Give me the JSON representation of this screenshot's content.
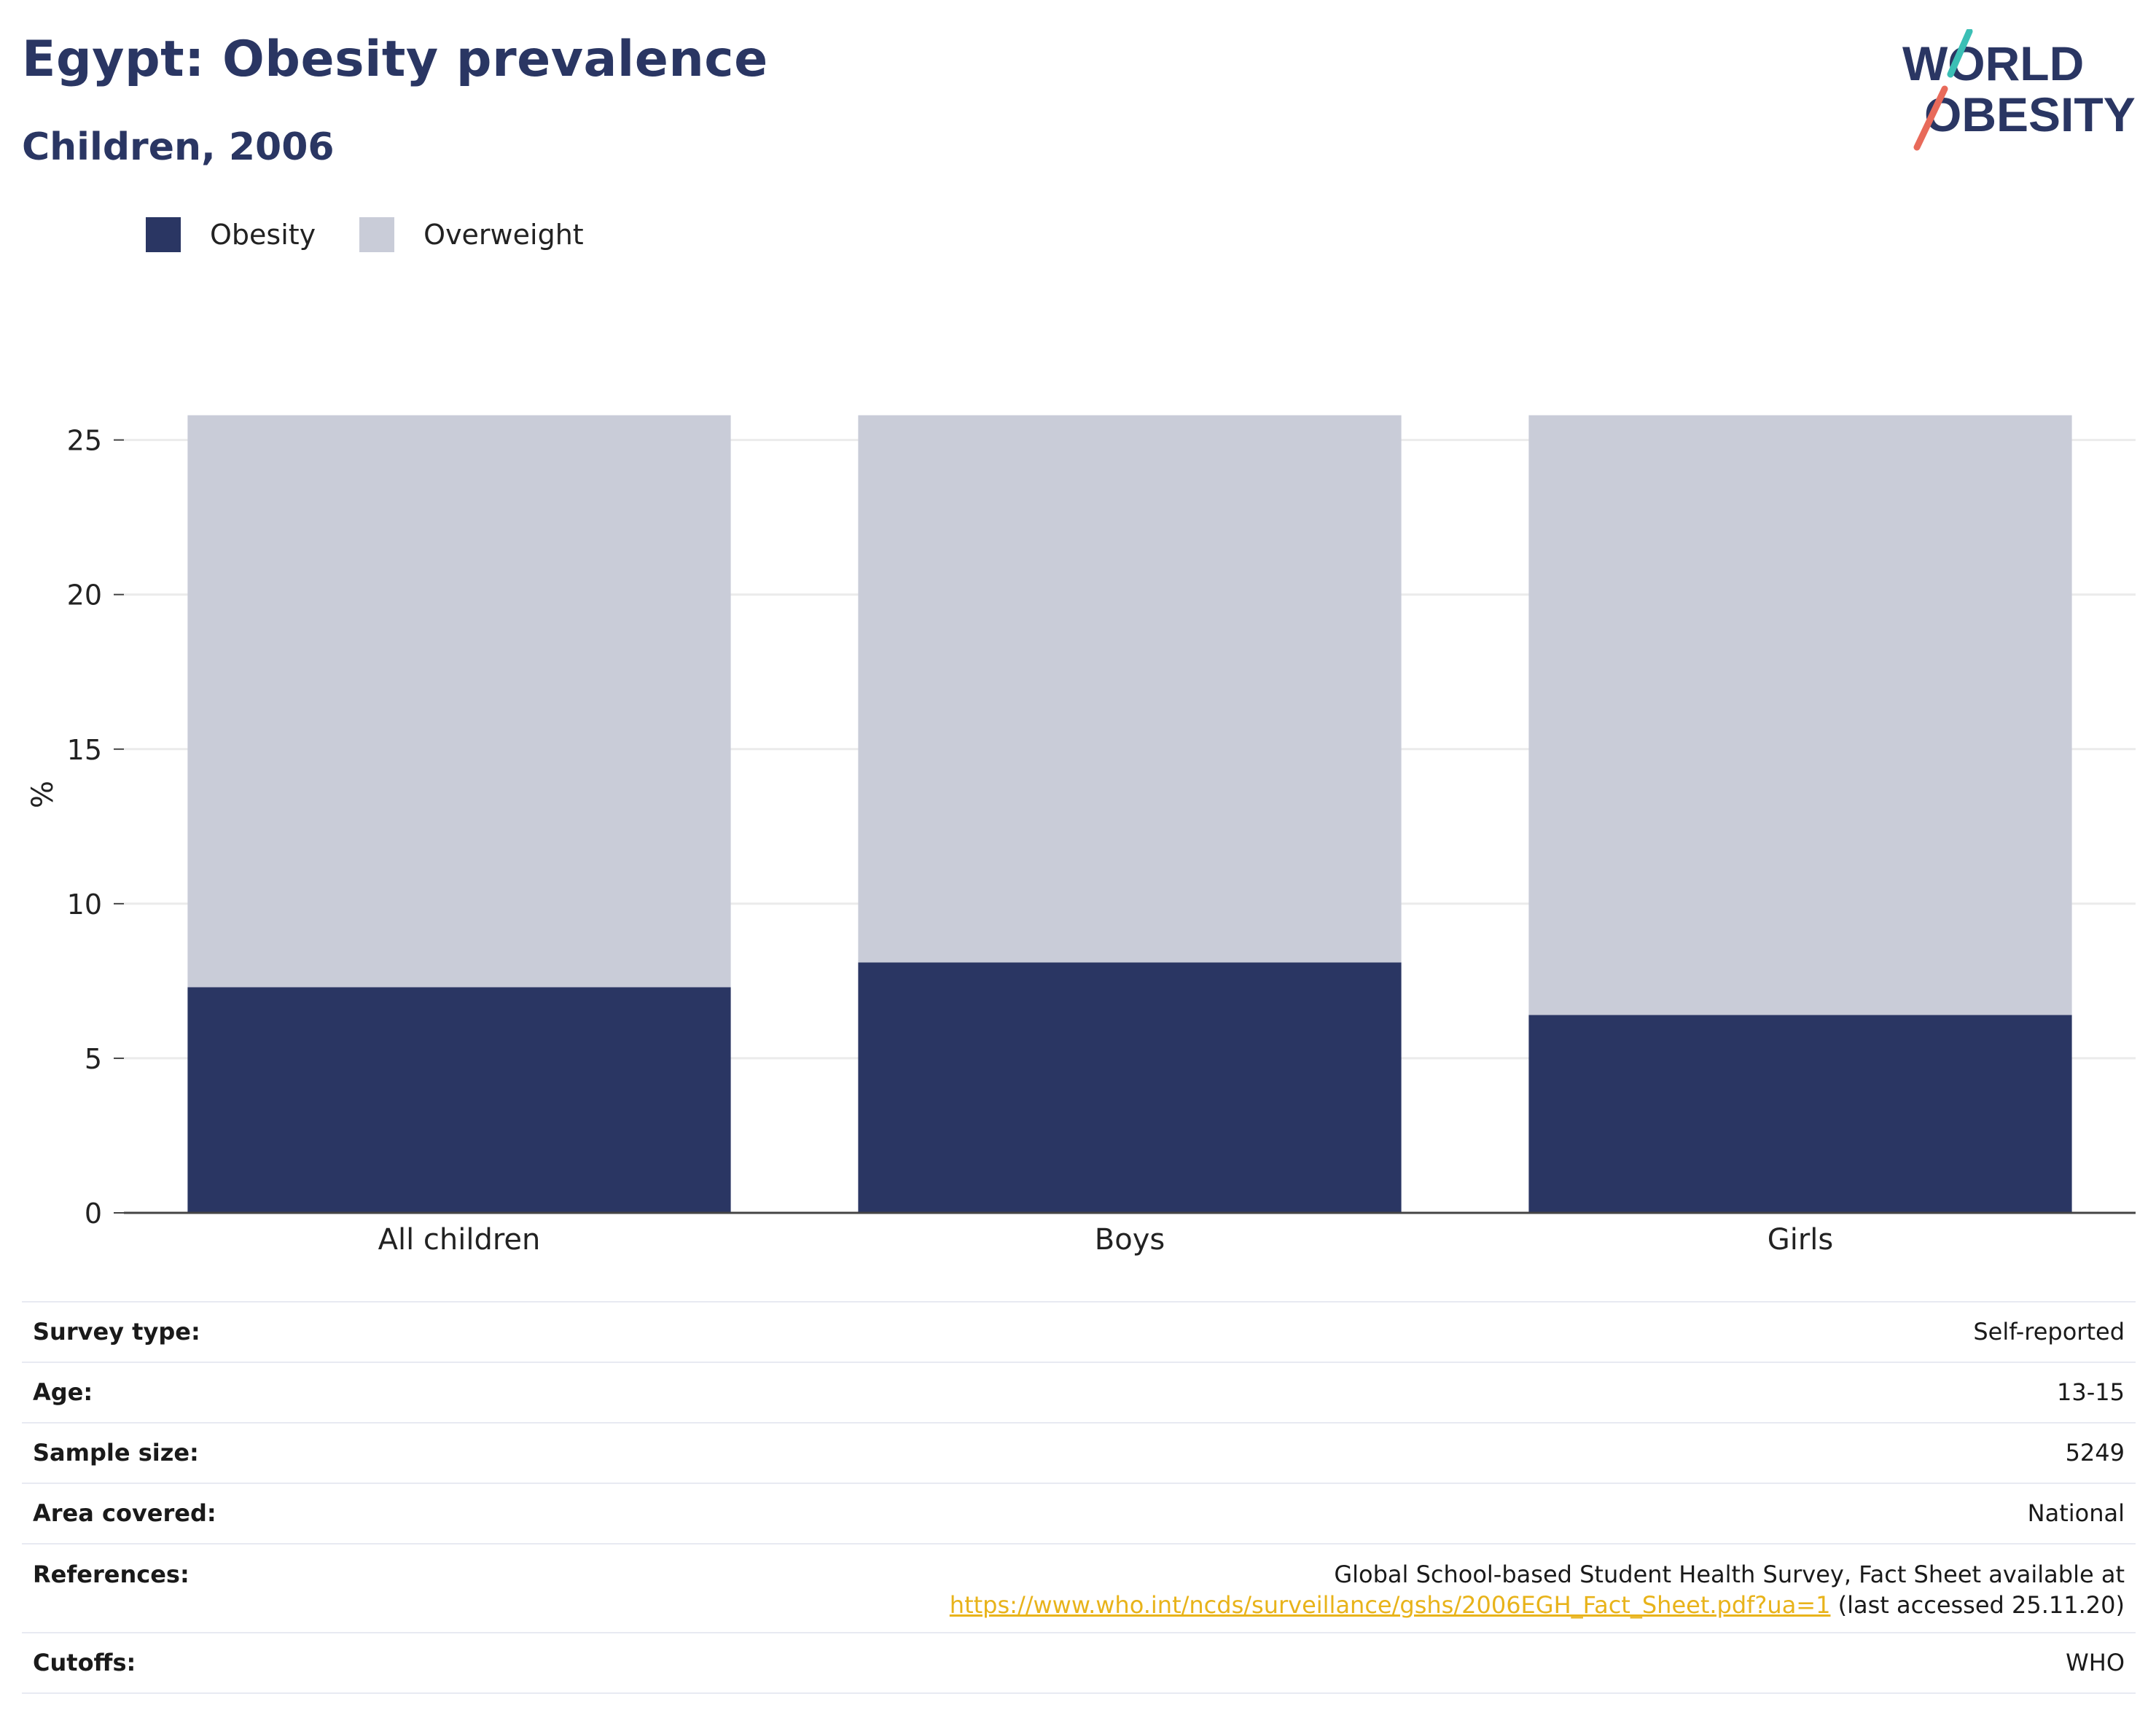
{
  "header": {
    "title": "Egypt: Obesity prevalence",
    "subtitle": "Children, 2006",
    "logo_line1": "WORLD",
    "logo_line2": "OBESITY"
  },
  "colors": {
    "obesity": "#2a3663",
    "overweight": "#c9ccd8",
    "title": "#2a3663",
    "link": "#e8b31a",
    "logo_slash_top": "#3bbfb5",
    "logo_slash_bottom": "#e86a5a"
  },
  "legend": [
    {
      "label": "Obesity",
      "color": "#2a3663"
    },
    {
      "label": "Overweight",
      "color": "#c9ccd8"
    }
  ],
  "chart_data": {
    "type": "bar",
    "stacked": true,
    "categories": [
      "All children",
      "Boys",
      "Girls"
    ],
    "series": [
      {
        "name": "Obesity",
        "values": [
          7.3,
          8.1,
          6.4
        ],
        "color": "#2a3663"
      },
      {
        "name": "Overweight",
        "values": [
          18.5,
          17.7,
          19.4
        ],
        "color": "#c9ccd8"
      }
    ],
    "ylabel": "%",
    "ylim": [
      0,
      26.5
    ],
    "yticks": [
      0,
      5,
      10,
      15,
      20,
      25
    ],
    "grid": true,
    "legend_position": "top-left"
  },
  "info": {
    "survey_type": {
      "label": "Survey type:",
      "value": "Self-reported"
    },
    "age": {
      "label": "Age:",
      "value": "13-15"
    },
    "sample_size": {
      "label": "Sample size:",
      "value": "5249"
    },
    "area": {
      "label": "Area covered:",
      "value": "National"
    },
    "references": {
      "label": "References:",
      "line1": "Global School-based Student Health Survey, Fact Sheet available at",
      "link": "https://www.who.int/ncds/surveillance/gshs/2006EGH_Fact_Sheet.pdf?ua=1",
      "suffix": " (last accessed 25.11.20)"
    },
    "cutoffs": {
      "label": "Cutoffs:",
      "value": "WHO"
    }
  }
}
